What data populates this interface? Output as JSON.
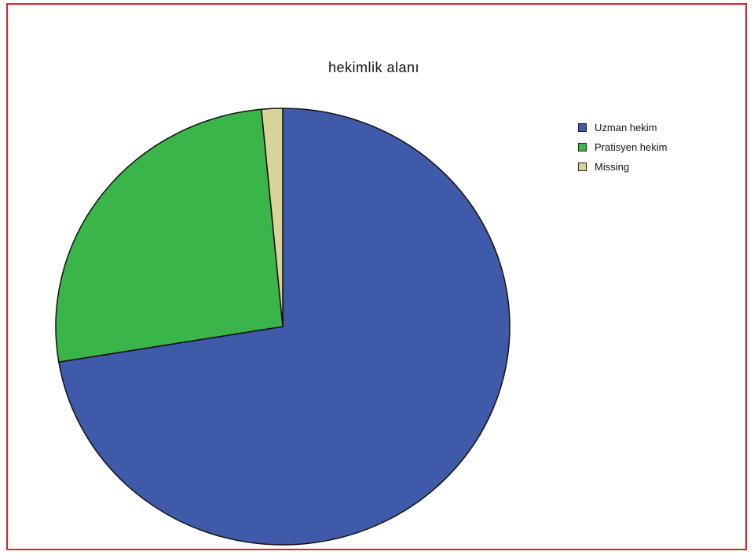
{
  "chart_data": {
    "type": "pie",
    "title": "hekimlik alanı",
    "slices": [
      {
        "label": "Uzman hekim",
        "value": 72.4,
        "color": "#3e5aa8"
      },
      {
        "label": "Pratisyen hekim",
        "value": 26.1,
        "color": "#3ab54a"
      },
      {
        "label": "Missing",
        "value": 1.5,
        "color": "#d8d49a"
      }
    ],
    "start_angle_deg": 0,
    "direction": "clockwise",
    "legend_position": "top-right"
  }
}
